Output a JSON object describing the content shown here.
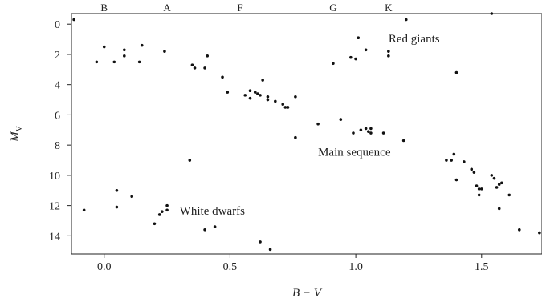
{
  "chart_data": {
    "type": "scatter",
    "title": "",
    "xlabel": "B − V",
    "ylabel": "M",
    "ylabel_sub": "V",
    "xlim": [
      -0.13,
      1.74
    ],
    "ylim": [
      15.2,
      -0.7
    ],
    "y_inverted": true,
    "grid": false,
    "x_ticks": [
      0.0,
      0.5,
      1.0,
      1.5
    ],
    "x_tick_labels": [
      "0.0",
      "0.5",
      "1.0",
      "1.5"
    ],
    "y_ticks": [
      0,
      2,
      4,
      6,
      8,
      10,
      12,
      14
    ],
    "y_tick_labels": [
      "0",
      "2",
      "4",
      "6",
      "8",
      "10",
      "12",
      "14"
    ],
    "spectral_classes": [
      {
        "label": "B",
        "x": 0.0
      },
      {
        "label": "A",
        "x": 0.25
      },
      {
        "label": "F",
        "x": 0.54
      },
      {
        "label": "G",
        "x": 0.91
      },
      {
        "label": "K",
        "x": 1.13
      }
    ],
    "annotations": [
      {
        "text": "Red giants",
        "x": 1.13,
        "y": 1.2
      },
      {
        "text": "Main sequence",
        "x": 0.85,
        "y": 8.7
      },
      {
        "text": "White dwarfs",
        "x": 0.3,
        "y": 12.6
      }
    ],
    "points": [
      [
        -0.12,
        -0.3
      ],
      [
        0.0,
        1.5
      ],
      [
        -0.03,
        2.5
      ],
      [
        0.04,
        2.5
      ],
      [
        0.08,
        1.7
      ],
      [
        0.08,
        2.1
      ],
      [
        0.15,
        1.4
      ],
      [
        0.14,
        2.5
      ],
      [
        0.24,
        1.8
      ],
      [
        0.35,
        2.7
      ],
      [
        0.36,
        2.9
      ],
      [
        0.4,
        2.9
      ],
      [
        0.41,
        2.1
      ],
      [
        0.47,
        3.5
      ],
      [
        0.49,
        4.5
      ],
      [
        0.56,
        4.7
      ],
      [
        0.58,
        4.4
      ],
      [
        0.58,
        4.9
      ],
      [
        0.6,
        4.5
      ],
      [
        0.61,
        4.6
      ],
      [
        0.62,
        4.7
      ],
      [
        0.63,
        3.7
      ],
      [
        0.65,
        4.8
      ],
      [
        0.65,
        5.0
      ],
      [
        0.68,
        5.1
      ],
      [
        0.71,
        5.3
      ],
      [
        0.72,
        5.5
      ],
      [
        0.73,
        5.5
      ],
      [
        0.76,
        4.8
      ],
      [
        0.76,
        7.5
      ],
      [
        0.85,
        6.6
      ],
      [
        0.94,
        6.3
      ],
      [
        0.99,
        7.2
      ],
      [
        1.02,
        7.0
      ],
      [
        1.04,
        6.9
      ],
      [
        1.05,
        7.1
      ],
      [
        1.06,
        6.9
      ],
      [
        1.06,
        7.2
      ],
      [
        1.11,
        7.2
      ],
      [
        1.19,
        7.7
      ],
      [
        0.91,
        2.6
      ],
      [
        0.98,
        2.2
      ],
      [
        1.0,
        2.3
      ],
      [
        1.01,
        0.9
      ],
      [
        1.04,
        1.7
      ],
      [
        1.13,
        1.8
      ],
      [
        1.13,
        2.1
      ],
      [
        1.2,
        -0.3
      ],
      [
        1.4,
        3.2
      ],
      [
        1.54,
        -0.7
      ],
      [
        1.36,
        9.0
      ],
      [
        1.38,
        9.0
      ],
      [
        1.39,
        8.6
      ],
      [
        1.4,
        10.3
      ],
      [
        1.43,
        9.1
      ],
      [
        1.46,
        9.6
      ],
      [
        1.47,
        9.8
      ],
      [
        1.48,
        10.7
      ],
      [
        1.49,
        10.9
      ],
      [
        1.5,
        10.9
      ],
      [
        1.49,
        11.3
      ],
      [
        1.54,
        10.0
      ],
      [
        1.55,
        10.2
      ],
      [
        1.56,
        10.8
      ],
      [
        1.57,
        10.6
      ],
      [
        1.58,
        10.5
      ],
      [
        1.57,
        12.2
      ],
      [
        1.61,
        11.3
      ],
      [
        1.65,
        13.6
      ],
      [
        1.73,
        13.8
      ],
      [
        -0.08,
        12.3
      ],
      [
        0.05,
        11.0
      ],
      [
        0.05,
        12.1
      ],
      [
        0.11,
        11.4
      ],
      [
        0.2,
        13.2
      ],
      [
        0.22,
        12.6
      ],
      [
        0.23,
        12.4
      ],
      [
        0.25,
        12.3
      ],
      [
        0.25,
        12.0
      ],
      [
        0.34,
        9.0
      ],
      [
        0.4,
        13.6
      ],
      [
        0.44,
        13.4
      ],
      [
        0.62,
        14.4
      ],
      [
        0.66,
        14.9
      ]
    ]
  }
}
